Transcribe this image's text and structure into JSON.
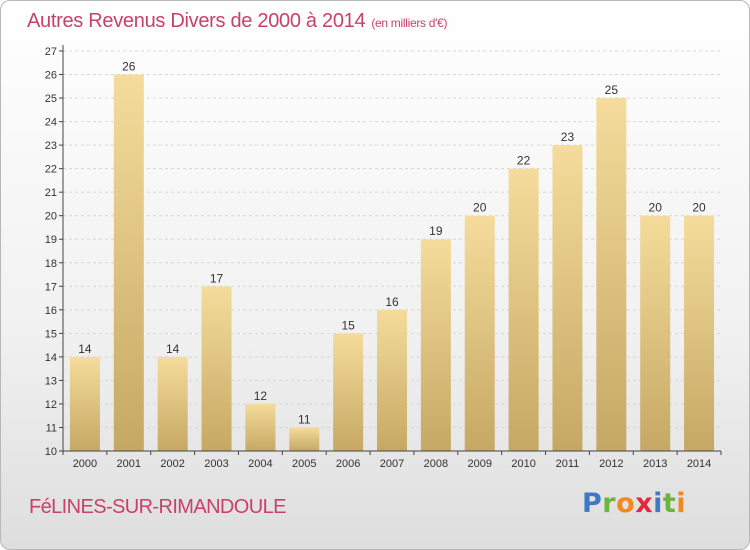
{
  "header": {
    "title": "Autres Revenus Divers de 2000 à 2014",
    "subtitle": "(en milliers d'€)"
  },
  "footer": {
    "commune": "FéLINES-SUR-RIMANDOULE",
    "logo": {
      "letters": [
        {
          "char": "P",
          "color": "#3f79c3"
        },
        {
          "char": "r",
          "color": "#6cb33f"
        },
        {
          "char": "o",
          "color": "#f08a1f"
        },
        {
          "char": "x",
          "color": "#e5263b"
        },
        {
          "char": "i",
          "color": "#3f79c3"
        },
        {
          "char": "t",
          "color": "#6cb33f"
        },
        {
          "char": "i",
          "color": "#f08a1f"
        }
      ]
    }
  },
  "colors": {
    "bar_top": "#f5dc9c",
    "bar_bottom": "#c5a863",
    "axis": "#444444",
    "grid": "#d6d6d6",
    "text": "#333333"
  },
  "chart_data": {
    "type": "bar",
    "categories": [
      "2000",
      "2001",
      "2002",
      "2003",
      "2004",
      "2005",
      "2006",
      "2007",
      "2008",
      "2009",
      "2010",
      "2011",
      "2012",
      "2013",
      "2014"
    ],
    "values": [
      14,
      26,
      14,
      17,
      12,
      11,
      15,
      16,
      19,
      20,
      22,
      23,
      25,
      20,
      20
    ],
    "title": "Autres Revenus Divers de 2000 à 2014",
    "subtitle": "(en milliers d'€)",
    "ylim": [
      10,
      27
    ],
    "yticks": [
      10,
      11,
      12,
      13,
      14,
      15,
      16,
      17,
      18,
      19,
      20,
      21,
      22,
      23,
      24,
      25,
      26,
      27
    ],
    "grid": true,
    "data_labels": true
  }
}
